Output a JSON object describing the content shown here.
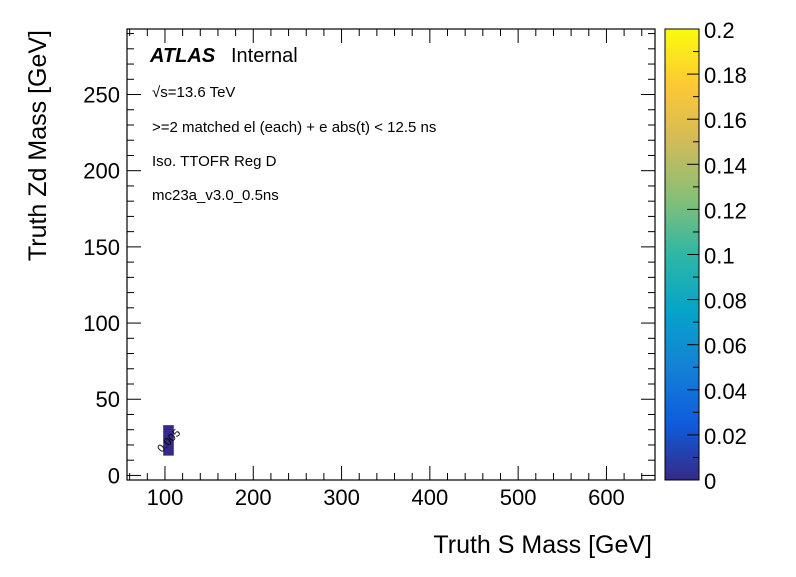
{
  "chart_data": {
    "type": "heatmap",
    "title": "",
    "xlabel": "Truth S Mass [GeV]",
    "ylabel": "Truth Zd Mass [GeV]",
    "xlim": [
      57,
      655
    ],
    "ylim": [
      -3,
      293
    ],
    "x_ticks": [
      100,
      200,
      300,
      400,
      500,
      600
    ],
    "y_ticks": [
      0,
      50,
      100,
      150,
      200,
      250
    ],
    "zlim": [
      0,
      0.2
    ],
    "z_ticks": [
      "0",
      "0.02",
      "0.04",
      "0.06",
      "0.08",
      "0.1",
      "0.12",
      "0.14",
      "0.16",
      "0.18",
      "0.2"
    ],
    "cells": [
      {
        "x0": 98,
        "x1": 110,
        "y0": 13,
        "y1": 33,
        "z": 0.005,
        "label": "0.005"
      }
    ],
    "annotations": {
      "atlas": "ATLAS",
      "internal": "Internal",
      "energy": "√s=13.6 TeV",
      "selection": ">=2 matched el (each) + e abs(t) < 12.5 ns",
      "region": "Iso. TTOFR Reg D",
      "sample": "mc23a_v3.0_0.5ns"
    },
    "colorbar_colors": [
      "#352a87",
      "#0f5cdd",
      "#1481d6",
      "#06a4ca",
      "#2eb7a4",
      "#87bf77",
      "#d1bb59",
      "#fec832",
      "#f9fb0e"
    ],
    "grid": false,
    "legend": "none"
  }
}
